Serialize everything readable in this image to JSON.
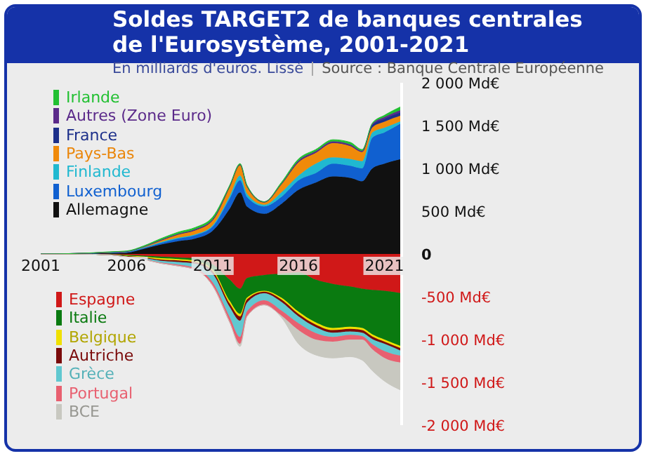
{
  "chart_data": [
    {
      "type": "area",
      "title": "Soldes TARGET2 de banques centrales de l'Eurosystème, 2001-2021",
      "subtitle": "En milliards d'euros. Lissé",
      "annotations": [
        "Source : Banque Centrale Européenne"
      ],
      "stacked": true,
      "legend": "left",
      "tick_labels": "y",
      "x": [
        2001,
        2003,
        2005,
        2006,
        2007,
        2008,
        2009,
        2010,
        2011,
        2012,
        2012.6,
        2013,
        2014,
        2015,
        2016,
        2017,
        2018,
        2019,
        2019.7,
        2020.3,
        2021,
        2022
      ],
      "xlim": [
        2001,
        2022
      ],
      "ylim": [
        0,
        2000
      ],
      "yticks": [
        0,
        {
          "value": 500,
          "label": "500 Md€"
        },
        {
          "value": 1000,
          "label": "1 000 Md€"
        },
        {
          "value": 1500,
          "label": "1 500 Md€"
        },
        {
          "value": 2000,
          "label": "2 000 Md€"
        }
      ],
      "series": [
        {
          "name": "Allemagne",
          "color": "#111111",
          "values": [
            0,
            5,
            10,
            15,
            60,
            110,
            150,
            180,
            270,
            530,
            720,
            555,
            470,
            585,
            750,
            835,
            905,
            890,
            850,
            1000,
            1055,
            1110
          ]
        },
        {
          "name": "Luxembourg",
          "color": "#1060d0",
          "values": [
            0,
            0,
            5,
            10,
            10,
            20,
            30,
            40,
            50,
            120,
            140,
            110,
            85,
            80,
            110,
            110,
            150,
            140,
            150,
            360,
            365,
            420
          ]
        },
        {
          "name": "Finlande",
          "color": "#20b8d0",
          "values": [
            0,
            0,
            0,
            0,
            5,
            10,
            10,
            10,
            15,
            30,
            55,
            40,
            20,
            55,
            55,
            110,
            75,
            80,
            85,
            60,
            55,
            25
          ]
        },
        {
          "name": "Pays-Bas",
          "color": "#f08a0a",
          "values": [
            0,
            0,
            5,
            5,
            10,
            20,
            40,
            50,
            60,
            110,
            125,
            85,
            30,
            95,
            160,
            130,
            170,
            155,
            110,
            60,
            70,
            65
          ]
        },
        {
          "name": "France",
          "color": "#1c2f8a",
          "values": [
            0,
            0,
            0,
            0,
            0,
            0,
            0,
            0,
            0,
            0,
            0,
            0,
            0,
            0,
            0,
            0,
            0,
            0,
            0,
            30,
            35,
            40
          ]
        },
        {
          "name": "Autres (Zone Euro)",
          "color": "#5b2a8a",
          "values": [
            0,
            0,
            0,
            0,
            0,
            5,
            5,
            10,
            10,
            5,
            5,
            5,
            5,
            5,
            15,
            15,
            15,
            15,
            10,
            10,
            20,
            25
          ]
        },
        {
          "name": "Irlande",
          "color": "#22c032",
          "values": [
            0,
            0,
            5,
            5,
            10,
            15,
            20,
            20,
            25,
            10,
            10,
            10,
            0,
            15,
            20,
            20,
            20,
            25,
            15,
            10,
            20,
            40
          ]
        }
      ]
    },
    {
      "type": "area",
      "stacked": true,
      "legend": "left",
      "x": [
        2001,
        2003,
        2005,
        2006,
        2007,
        2008,
        2009,
        2010,
        2011,
        2012,
        2012.6,
        2013,
        2014,
        2015,
        2016,
        2017,
        2018,
        2019,
        2019.7,
        2020.3,
        2021,
        2022
      ],
      "xlim": [
        2001,
        2022
      ],
      "xticks": [
        2001,
        2006,
        2011,
        2016,
        2021
      ],
      "ylim": [
        -2000,
        0
      ],
      "yticks": [
        {
          "value": -500,
          "label": "-500 Md€"
        },
        {
          "value": -1000,
          "label": "-1 000 Md€"
        },
        {
          "value": -1500,
          "label": "-1 500 Md€"
        },
        {
          "value": -2000,
          "label": "-2 000 Md€"
        }
      ],
      "series": [
        {
          "name": "Espagne",
          "color": "#d01818",
          "values": [
            0,
            0,
            -5,
            -10,
            -20,
            -30,
            -40,
            -50,
            -120,
            -300,
            -405,
            -280,
            -245,
            -230,
            -215,
            -300,
            -350,
            -380,
            -405,
            -420,
            -430,
            -460
          ]
        },
        {
          "name": "Italie",
          "color": "#0a7a10",
          "values": [
            0,
            0,
            -5,
            -10,
            -10,
            -20,
            -20,
            -30,
            -60,
            -250,
            -295,
            -230,
            -185,
            -280,
            -460,
            -500,
            -515,
            -470,
            -460,
            -520,
            -570,
            -620
          ]
        },
        {
          "name": "Belgique",
          "color": "#f0e000",
          "values": [
            0,
            0,
            0,
            -5,
            -10,
            -15,
            -15,
            -15,
            -20,
            -30,
            -30,
            -20,
            -10,
            -20,
            -25,
            -25,
            -25,
            -25,
            -25,
            -25,
            -25,
            -25
          ]
        },
        {
          "name": "Autriche",
          "color": "#7a0a0a",
          "values": [
            0,
            0,
            0,
            -5,
            -10,
            -15,
            -20,
            -20,
            -30,
            -40,
            -50,
            -40,
            -20,
            -30,
            -30,
            -30,
            -30,
            -30,
            -30,
            -30,
            -25,
            -30
          ]
        },
        {
          "name": "Grèce",
          "color": "#60c8d0",
          "values": [
            0,
            0,
            0,
            -5,
            -10,
            -20,
            -30,
            -50,
            -100,
            -120,
            -190,
            -100,
            -80,
            -100,
            -80,
            -70,
            -50,
            -40,
            -40,
            -60,
            -85,
            -55
          ]
        },
        {
          "name": "Portugal",
          "color": "#e86070",
          "values": [
            0,
            0,
            0,
            0,
            -5,
            -10,
            -15,
            -20,
            -40,
            -60,
            -80,
            -60,
            -55,
            -60,
            -80,
            -75,
            -55,
            -55,
            -40,
            -60,
            -80,
            -80
          ]
        },
        {
          "name": "BCE",
          "color": "#c8c8c0",
          "values": [
            0,
            0,
            0,
            0,
            0,
            0,
            0,
            0,
            0,
            0,
            -30,
            0,
            0,
            -20,
            -160,
            -180,
            -190,
            -200,
            -240,
            -250,
            -270,
            -325
          ]
        }
      ]
    }
  ]
}
